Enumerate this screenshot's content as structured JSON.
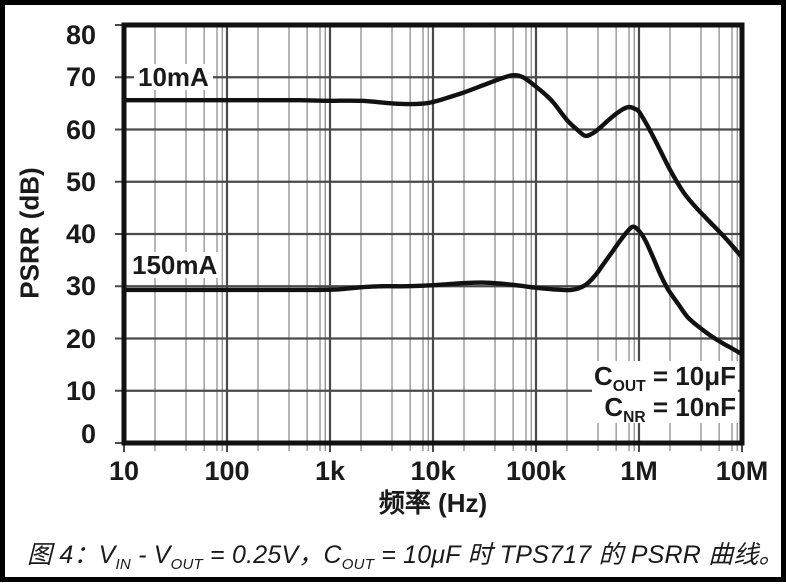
{
  "figure": {
    "y_axis_title": "PSRR (dB)",
    "x_axis_title": "频率 (Hz)",
    "curve_labels": {
      "c10": "10mA",
      "c150": "150mA"
    },
    "annotation": {
      "line1": {
        "base": "C",
        "sub": "OUT",
        "rest": " = 10μF"
      },
      "line2": {
        "base": "C",
        "sub": "NR",
        "rest": " = 10nF"
      }
    },
    "caption": {
      "p1": "图 4：V",
      "s1": "IN",
      "p2": " - V",
      "s2": "OUT",
      "p3": " = 0.25V，C",
      "s3": "OUT",
      "p4": " = 10μF 时 TPS717 的 PSRR 曲线。"
    }
  },
  "chart_data": {
    "type": "line",
    "title": "",
    "xlabel": "频率 (Hz)",
    "ylabel": "PSRR (dB)",
    "x_scale": "log",
    "xlim": [
      10,
      10000000
    ],
    "ylim": [
      0,
      80
    ],
    "grid": true,
    "legend_position": "inline-curve-labels",
    "xticks": {
      "values": [
        10,
        100,
        1000,
        10000,
        100000,
        1000000,
        10000000
      ],
      "labels": [
        "10",
        "100",
        "1k",
        "10k",
        "100k",
        "1M",
        "10M"
      ]
    },
    "yticks": {
      "values": [
        0,
        10,
        20,
        30,
        40,
        50,
        60,
        70,
        80
      ],
      "labels": [
        "0",
        "10",
        "20",
        "30",
        "40",
        "50",
        "60",
        "70",
        "80"
      ]
    },
    "x_minor_multipliers": [
      2,
      4,
      6,
      8,
      9
    ],
    "colors": {
      "curve": "#111111",
      "grid_major": "#4a4a4a",
      "grid_minor": "#979797",
      "frame": "#111111"
    },
    "conditions": [
      "VIN - VOUT = 0.25V",
      "COUT = 10μF",
      "CNR = 10nF"
    ],
    "series": [
      {
        "name": "10mA",
        "points": [
          [
            10,
            65.6
          ],
          [
            20,
            65.6
          ],
          [
            50,
            65.6
          ],
          [
            100,
            65.6
          ],
          [
            200,
            65.6
          ],
          [
            500,
            65.6
          ],
          [
            1000,
            65.5
          ],
          [
            2000,
            65.5
          ],
          [
            3500,
            65.1
          ],
          [
            5000,
            64.9
          ],
          [
            7000,
            64.9
          ],
          [
            9000,
            65.1
          ],
          [
            12000,
            65.7
          ],
          [
            15000,
            66.3
          ],
          [
            20000,
            67.1
          ],
          [
            30000,
            68.4
          ],
          [
            45000,
            69.7
          ],
          [
            60000,
            70.4
          ],
          [
            75000,
            70.0
          ],
          [
            100000,
            68.2
          ],
          [
            130000,
            66.3
          ],
          [
            150000,
            65.0
          ],
          [
            200000,
            61.8
          ],
          [
            250000,
            60.0
          ],
          [
            300000,
            58.8
          ],
          [
            350000,
            59.2
          ],
          [
            400000,
            60.0
          ],
          [
            500000,
            61.7
          ],
          [
            600000,
            63.0
          ],
          [
            700000,
            63.9
          ],
          [
            800000,
            64.3
          ],
          [
            900000,
            64.0
          ],
          [
            1000000,
            63.4
          ],
          [
            1200000,
            60.8
          ],
          [
            1500000,
            57.2
          ],
          [
            2000000,
            52.3
          ],
          [
            2700000,
            48.0
          ],
          [
            3500000,
            45.3
          ],
          [
            4500000,
            43.0
          ],
          [
            6000000,
            40.5
          ],
          [
            8000000,
            37.8
          ],
          [
            10000000,
            35.5
          ]
        ]
      },
      {
        "name": "150mA",
        "points": [
          [
            10,
            29.3
          ],
          [
            50,
            29.3
          ],
          [
            100,
            29.3
          ],
          [
            300,
            29.3
          ],
          [
            700,
            29.3
          ],
          [
            1200,
            29.4
          ],
          [
            2000,
            29.8
          ],
          [
            3000,
            30.0
          ],
          [
            5000,
            30.0
          ],
          [
            8000,
            30.1
          ],
          [
            12000,
            30.3
          ],
          [
            20000,
            30.6
          ],
          [
            30000,
            30.7
          ],
          [
            45000,
            30.5
          ],
          [
            70000,
            30.1
          ],
          [
            100000,
            29.7
          ],
          [
            150000,
            29.4
          ],
          [
            220000,
            29.3
          ],
          [
            300000,
            30.2
          ],
          [
            380000,
            32.2
          ],
          [
            450000,
            34.2
          ],
          [
            550000,
            36.6
          ],
          [
            650000,
            38.6
          ],
          [
            750000,
            40.2
          ],
          [
            870000,
            41.4
          ],
          [
            1000000,
            40.6
          ],
          [
            1150000,
            38.8
          ],
          [
            1350000,
            35.8
          ],
          [
            1600000,
            32.4
          ],
          [
            1900000,
            29.5
          ],
          [
            2400000,
            26.6
          ],
          [
            3000000,
            24.0
          ],
          [
            4000000,
            21.9
          ],
          [
            5000000,
            20.5
          ],
          [
            6500000,
            19.1
          ],
          [
            8000000,
            18.1
          ],
          [
            10000000,
            17.0
          ]
        ]
      }
    ]
  }
}
